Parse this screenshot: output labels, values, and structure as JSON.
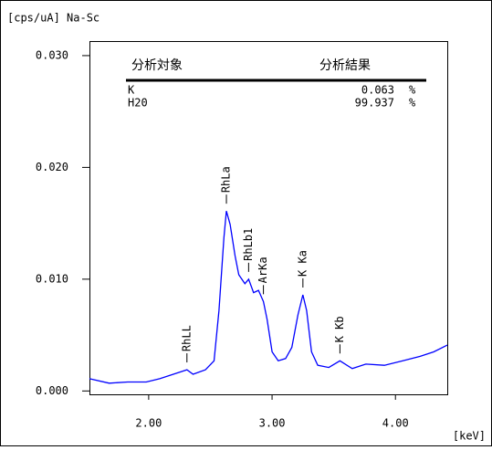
{
  "chart_data": {
    "type": "line",
    "title": "[cps/uA] Na-Sc",
    "x_label": "[keV]",
    "x": [
      1.52,
      1.68,
      1.83,
      1.98,
      2.09,
      2.2,
      2.31,
      2.36,
      2.46,
      2.53,
      2.57,
      2.61,
      2.63,
      2.66,
      2.7,
      2.73,
      2.78,
      2.81,
      2.85,
      2.89,
      2.93,
      2.96,
      3.0,
      3.05,
      3.11,
      3.16,
      3.21,
      3.25,
      3.28,
      3.32,
      3.37,
      3.46,
      3.55,
      3.65,
      3.76,
      3.91,
      4.06,
      4.2,
      4.31,
      4.42
    ],
    "values": [
      0.0011,
      0.0007,
      0.0008,
      0.0008,
      0.0011,
      0.0015,
      0.0019,
      0.0015,
      0.0019,
      0.0027,
      0.0072,
      0.0137,
      0.0161,
      0.0149,
      0.0121,
      0.0104,
      0.0096,
      0.01,
      0.0088,
      0.009,
      0.008,
      0.0064,
      0.0035,
      0.0027,
      0.0029,
      0.0039,
      0.0068,
      0.0086,
      0.0072,
      0.0035,
      0.0023,
      0.0021,
      0.0027,
      0.002,
      0.0024,
      0.0023,
      0.0027,
      0.0031,
      0.0035,
      0.0041
    ],
    "color": "#0000ff",
    "xlim": [
      1.52,
      4.42
    ],
    "ylim": [
      -0.0003,
      0.0313
    ],
    "xticks": [
      {
        "value": 2,
        "label": "2.00"
      },
      {
        "value": 3,
        "label": "3.00"
      },
      {
        "value": 4,
        "label": "4.00"
      }
    ],
    "yticks": [
      {
        "value": 0,
        "label": "0.000"
      },
      {
        "value": 0.01,
        "label": "0.010"
      },
      {
        "value": 0.02,
        "label": "0.020"
      },
      {
        "value": 0.03,
        "label": "0.030"
      }
    ],
    "annotations": [
      {
        "text": "RhLL",
        "x": 2.31
      },
      {
        "text": "RhLa",
        "x": 2.63
      },
      {
        "text": "RhLb1",
        "x": 2.81
      },
      {
        "text": "ArKa",
        "x": 2.93
      },
      {
        "text": "K Ka",
        "x": 3.25
      },
      {
        "text": "K Kb",
        "x": 3.55
      }
    ],
    "results_table": {
      "headers": [
        "分析対象",
        "分析結果"
      ],
      "rows": [
        [
          "K",
          "0.063",
          "%"
        ],
        [
          "H20",
          "99.937",
          "%"
        ]
      ]
    }
  }
}
